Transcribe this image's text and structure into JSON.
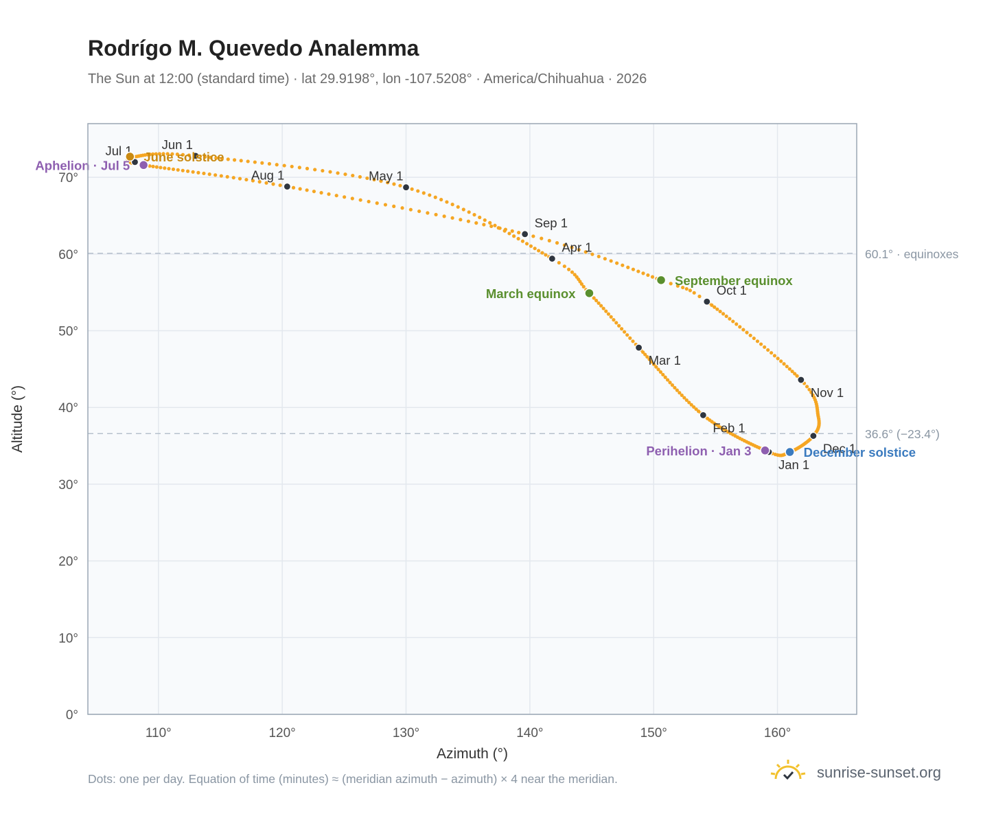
{
  "header": {
    "title": "Rodrígo M. Quevedo Analemma",
    "subtitle": "The Sun at 12:00 (standard time) · lat 29.9198°, lon -107.5208° · America/Chihuahua · 2026"
  },
  "footer": {
    "note": "Dots: one per day. Equation of time (minutes) ≈ (meridian azimuth − azimuth) × 4 near the meridian.",
    "brand": "sunrise-sunset.org"
  },
  "colors": {
    "curve": "#f5a623",
    "month_dot": "#2f3640",
    "equinox": "#5a8f2e",
    "june_solstice": "#c98a12",
    "december_solstice": "#3b7bbf",
    "apsis": "#8e5fb0",
    "plot_bg": "#f8fafc",
    "grid": "#e3e8ee",
    "ref_line": "#b6c1cd"
  },
  "chart_data": {
    "type": "scatter",
    "title": "Rodrígo M. Quevedo Analemma",
    "xlabel": "Azimuth (°)",
    "ylabel": "Altitude (°)",
    "xlim": [
      104.3,
      166.4
    ],
    "ylim": [
      0,
      77
    ],
    "x_ticks": [
      110,
      120,
      130,
      140,
      150,
      160
    ],
    "x_tick_labels": [
      "110°",
      "120°",
      "130°",
      "140°",
      "150°",
      "160°"
    ],
    "y_ticks": [
      0,
      10,
      20,
      30,
      40,
      50,
      60,
      70
    ],
    "y_tick_labels": [
      "0°",
      "10°",
      "20°",
      "30°",
      "40°",
      "50°",
      "60°",
      "70°"
    ],
    "grid": true,
    "reference_lines": [
      {
        "y": 60.1,
        "label": "60.1° · equinoxes"
      },
      {
        "y": 36.6,
        "label": "36.6° (−23.4°)"
      }
    ],
    "path_anchors": [
      {
        "day": 0,
        "x": 159.3,
        "y": 34.2
      },
      {
        "day": 31,
        "x": 154.0,
        "y": 39.0
      },
      {
        "day": 59,
        "x": 148.8,
        "y": 47.8
      },
      {
        "day": 78,
        "x": 144.8,
        "y": 54.9
      },
      {
        "day": 90,
        "x": 141.8,
        "y": 59.4
      },
      {
        "day": 120,
        "x": 130.0,
        "y": 68.7
      },
      {
        "day": 151,
        "x": 113.0,
        "y": 72.8
      },
      {
        "day": 171,
        "x": 107.8,
        "y": 72.6
      },
      {
        "day": 181,
        "x": 108.1,
        "y": 72.0
      },
      {
        "day": 185,
        "x": 108.8,
        "y": 71.6
      },
      {
        "day": 212,
        "x": 120.4,
        "y": 68.8
      },
      {
        "day": 243,
        "x": 139.6,
        "y": 62.6
      },
      {
        "day": 265,
        "x": 150.6,
        "y": 56.6
      },
      {
        "day": 273,
        "x": 154.3,
        "y": 53.8
      },
      {
        "day": 304,
        "x": 161.9,
        "y": 43.6
      },
      {
        "day": 320,
        "x": 163.3,
        "y": 38.8
      },
      {
        "day": 334,
        "x": 162.9,
        "y": 36.3
      },
      {
        "day": 354,
        "x": 161.0,
        "y": 34.2
      },
      {
        "day": 365,
        "x": 159.3,
        "y": 34.2
      }
    ],
    "month_markers": [
      {
        "label": "Jan 1",
        "x": 159.3,
        "y": 34.2,
        "pos": "below-right"
      },
      {
        "label": "Feb 1",
        "x": 154.0,
        "y": 39.0,
        "pos": "below-right"
      },
      {
        "label": "Mar 1",
        "x": 148.8,
        "y": 47.8,
        "pos": "below-right"
      },
      {
        "label": "Apr 1",
        "x": 141.8,
        "y": 59.4,
        "pos": "above-right"
      },
      {
        "label": "May 1",
        "x": 130.0,
        "y": 68.7,
        "pos": "above-left"
      },
      {
        "label": "Jun 1",
        "x": 113.0,
        "y": 72.8,
        "pos": "above-left"
      },
      {
        "label": "Jul 1",
        "x": 108.1,
        "y": 72.0,
        "pos": "above-left"
      },
      {
        "label": "Aug 1",
        "x": 120.4,
        "y": 68.8,
        "pos": "above-left"
      },
      {
        "label": "Sep 1",
        "x": 139.6,
        "y": 62.6,
        "pos": "above-right"
      },
      {
        "label": "Oct 1",
        "x": 154.3,
        "y": 53.8,
        "pos": "above-right"
      },
      {
        "label": "Nov 1",
        "x": 161.9,
        "y": 43.6,
        "pos": "below-right"
      },
      {
        "label": "Dec 1",
        "x": 162.9,
        "y": 36.3,
        "pos": "below-right"
      }
    ],
    "events": [
      {
        "label": "March equinox",
        "x": 144.8,
        "y": 54.9,
        "color": "#5a8f2e",
        "anchor": "end"
      },
      {
        "label": "June solstice",
        "x": 107.7,
        "y": 72.7,
        "color": "#c98a12",
        "anchor": "start"
      },
      {
        "label": "September equinox",
        "x": 150.6,
        "y": 56.6,
        "color": "#5a8f2e",
        "anchor": "start"
      },
      {
        "label": "December solstice",
        "x": 161.0,
        "y": 34.2,
        "color": "#3b7bbf",
        "anchor": "start"
      },
      {
        "label": "Perihelion · Jan 3",
        "x": 159.0,
        "y": 34.4,
        "color": "#8e5fb0",
        "anchor": "end"
      },
      {
        "label": "Aphelion · Jul 5",
        "x": 108.8,
        "y": 71.6,
        "color": "#8e5fb0",
        "anchor": "end"
      }
    ]
  }
}
